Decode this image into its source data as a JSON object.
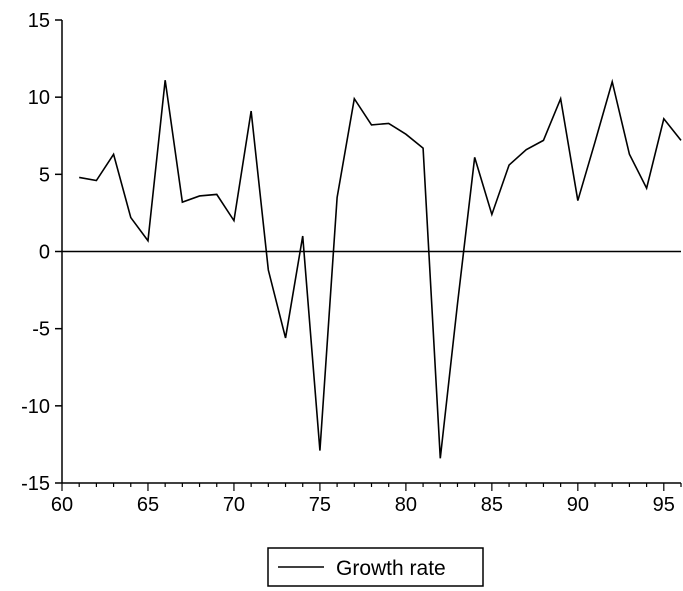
{
  "chart_data": {
    "type": "line",
    "title": "",
    "xlabel": "",
    "ylabel": "",
    "xlim": [
      60,
      96
    ],
    "ylim": [
      -15,
      15
    ],
    "x_ticks": [
      60,
      65,
      70,
      75,
      80,
      85,
      90,
      95
    ],
    "y_ticks": [
      15,
      10,
      5,
      0,
      -5,
      -10,
      -15
    ],
    "grid": false,
    "zero_line": true,
    "legend_position": "bottom-center",
    "series": [
      {
        "name": "Growth rate",
        "color": "#000000",
        "x": [
          61,
          62,
          63,
          64,
          65,
          66,
          67,
          68,
          69,
          70,
          71,
          72,
          73,
          74,
          75,
          76,
          77,
          78,
          79,
          80,
          81,
          82,
          83,
          84,
          85,
          86,
          87,
          88,
          89,
          90,
          91,
          92,
          93,
          94,
          95,
          96
        ],
        "y": [
          4.8,
          4.6,
          6.3,
          2.2,
          0.7,
          11.1,
          3.2,
          3.6,
          3.7,
          2.0,
          9.1,
          -1.2,
          -5.6,
          1.0,
          -12.9,
          3.5,
          9.9,
          8.2,
          8.3,
          7.6,
          6.7,
          -13.4,
          -3.4,
          6.1,
          2.4,
          5.6,
          6.6,
          7.2,
          9.9,
          3.3,
          7.1,
          11.0,
          6.3,
          4.1,
          8.6,
          7.2
        ]
      }
    ]
  }
}
